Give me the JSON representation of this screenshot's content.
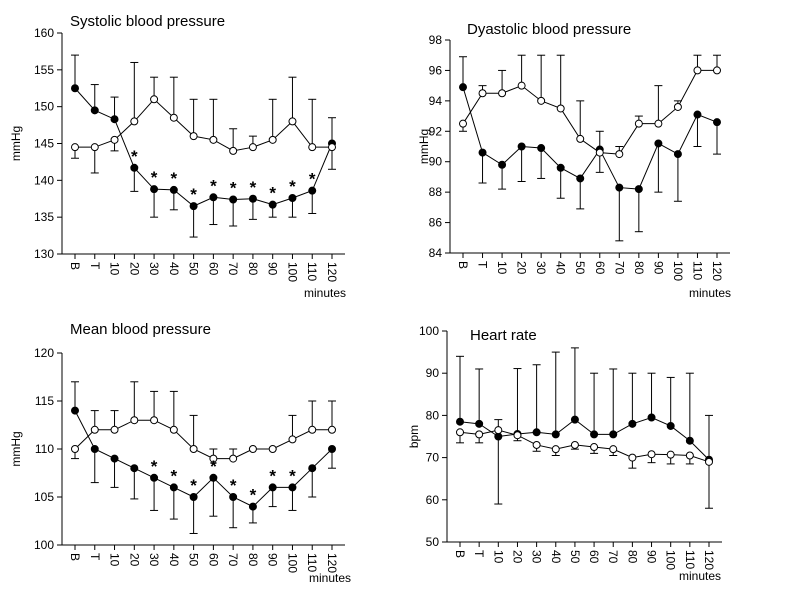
{
  "chart_data": [
    {
      "type": "line",
      "title": "Systolic blood pressure",
      "ylabel": "mmHg",
      "xlabel": "minutes",
      "categories": [
        "B",
        "T",
        "10",
        "20",
        "30",
        "40",
        "50",
        "60",
        "70",
        "80",
        "90",
        "100",
        "110",
        "120"
      ],
      "ylim": [
        130,
        160
      ],
      "yticks": [
        130,
        135,
        140,
        145,
        150,
        155,
        160
      ],
      "series": [
        {
          "color": "#000000",
          "marker_fill": "#000000",
          "values": [
            152.5,
            149.5,
            148.3,
            141.7,
            138.8,
            138.7,
            136.5,
            137.7,
            137.4,
            137.5,
            136.7,
            137.6,
            138.6,
            145
          ],
          "errors": [
            4.5,
            3.5,
            3,
            3.2,
            3.8,
            2.7,
            4.2,
            3.7,
            3.6,
            2.8,
            1.7,
            2.6,
            3.1,
            3.5
          ]
        },
        {
          "color": "#000000",
          "marker_fill": "#ffffff",
          "values": [
            144.5,
            144.5,
            145.5,
            148,
            151,
            148.5,
            146,
            145.5,
            144,
            144.5,
            145.5,
            148,
            144.5,
            144.5
          ],
          "errors": [
            1.5,
            3.5,
            1.5,
            8,
            3,
            5.5,
            5,
            5.5,
            3,
            1.5,
            5.5,
            6,
            6.5,
            3
          ]
        }
      ],
      "annotations": [
        {
          "category": "20",
          "text": "*"
        },
        {
          "category": "30",
          "text": "*"
        },
        {
          "category": "40",
          "text": "*"
        },
        {
          "category": "50",
          "text": "*"
        },
        {
          "category": "60",
          "text": "*"
        },
        {
          "category": "70",
          "text": "*"
        },
        {
          "category": "80",
          "text": "*"
        },
        {
          "category": "90",
          "text": "*"
        },
        {
          "category": "100",
          "text": "*"
        },
        {
          "category": "110",
          "text": "*"
        }
      ]
    },
    {
      "type": "line",
      "title": "Dyastolic blood pressure",
      "ylabel": "mmHg",
      "xlabel": "minutes",
      "categories": [
        "B",
        "T",
        "10",
        "20",
        "30",
        "40",
        "50",
        "60",
        "70",
        "80",
        "90",
        "100",
        "110",
        "120"
      ],
      "ylim": [
        84,
        98
      ],
      "yticks": [
        84,
        86,
        88,
        90,
        92,
        94,
        96,
        98
      ],
      "series": [
        {
          "color": "#000000",
          "marker_fill": "#000000",
          "values": [
            94.9,
            90.6,
            89.8,
            91,
            90.9,
            89.6,
            88.9,
            90.8,
            88.3,
            88.2,
            91.2,
            90.5,
            93.1,
            92.6
          ],
          "errors": [
            2,
            2,
            1.6,
            2.3,
            2,
            2,
            2,
            1.2,
            3.5,
            2.8,
            3.2,
            3.1,
            2.1,
            2.1
          ]
        },
        {
          "color": "#000000",
          "marker_fill": "#ffffff",
          "values": [
            92.5,
            94.5,
            94.5,
            95,
            94,
            93.5,
            91.5,
            90.6,
            90.5,
            92.5,
            92.5,
            93.6,
            96,
            96
          ],
          "errors": [
            0.5,
            0.5,
            1.5,
            2,
            3,
            3.5,
            2.5,
            1.3,
            0.5,
            0.5,
            2.5,
            0.4,
            1,
            1
          ]
        }
      ],
      "annotations": []
    },
    {
      "type": "line",
      "title": "Mean blood pressure",
      "ylabel": "mmHg",
      "xlabel": "minutes",
      "categories": [
        "B",
        "T",
        "10",
        "20",
        "30",
        "40",
        "50",
        "60",
        "70",
        "80",
        "90",
        "100",
        "110",
        "120"
      ],
      "ylim": [
        100,
        120
      ],
      "yticks": [
        100,
        105,
        110,
        115,
        120
      ],
      "series": [
        {
          "color": "#000000",
          "marker_fill": "#000000",
          "values": [
            114,
            110,
            109,
            108,
            107,
            106,
            105,
            107,
            105,
            104,
            106,
            106,
            108,
            110
          ],
          "errors": [
            3,
            3.5,
            3,
            3.2,
            3.4,
            3.3,
            3.8,
            4,
            3.2,
            1.7,
            2,
            2.4,
            3,
            2
          ]
        },
        {
          "color": "#000000",
          "marker_fill": "#ffffff",
          "values": [
            110,
            112,
            112,
            113,
            113,
            112,
            110,
            109,
            109,
            110,
            110,
            111,
            112,
            112
          ],
          "errors": [
            1,
            2,
            2,
            4,
            3,
            4,
            3.5,
            1,
            1,
            0,
            0,
            2.5,
            3,
            3
          ]
        }
      ],
      "annotations": [
        {
          "category": "30",
          "text": "*"
        },
        {
          "category": "40",
          "text": "*"
        },
        {
          "category": "50",
          "text": "*"
        },
        {
          "category": "60",
          "text": "*"
        },
        {
          "category": "70",
          "text": "*"
        },
        {
          "category": "80",
          "text": "*"
        },
        {
          "category": "90",
          "text": "*"
        },
        {
          "category": "100",
          "text": "*"
        }
      ]
    },
    {
      "type": "line",
      "title": "Heart rate",
      "ylabel": "bpm",
      "xlabel": "minutes",
      "categories": [
        "B",
        "T",
        "10",
        "20",
        "30",
        "40",
        "50",
        "60",
        "70",
        "80",
        "90",
        "100",
        "110",
        "120"
      ],
      "ylim": [
        50,
        100
      ],
      "yticks": [
        50,
        60,
        70,
        80,
        90,
        100
      ],
      "series": [
        {
          "color": "#000000",
          "marker_fill": "#000000",
          "values": [
            78.5,
            78,
            75,
            75.6,
            76,
            75.5,
            79,
            75.5,
            75.5,
            78,
            79.5,
            77.5,
            74,
            69.5
          ],
          "errors": [
            15.5,
            13,
            16,
            15.5,
            16,
            19.5,
            17,
            14.5,
            15.5,
            12,
            10.5,
            11.5,
            16,
            10.5
          ]
        },
        {
          "color": "#000000",
          "marker_fill": "#ffffff",
          "values": [
            76,
            75.5,
            76.5,
            75.3,
            73,
            72,
            73,
            72.5,
            72,
            70,
            70.8,
            70.7,
            70.5,
            69
          ],
          "errors": [
            2.5,
            2,
            2.5,
            1.3,
            1.5,
            1.5,
            1,
            1.5,
            1.5,
            2.5,
            2,
            2.2,
            2,
            11
          ]
        }
      ],
      "annotations": []
    }
  ]
}
